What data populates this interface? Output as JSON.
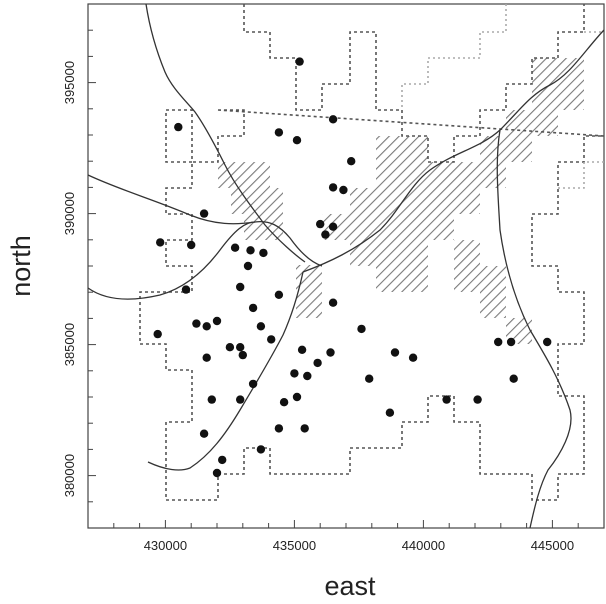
{
  "chart_data": {
    "type": "scatter",
    "title": "",
    "xlabel": "east",
    "ylabel": "north",
    "xlim": [
      427000,
      447000
    ],
    "ylim": [
      378000,
      398000
    ],
    "grid": false,
    "x_ticks": [
      430000,
      435000,
      440000,
      445000
    ],
    "y_ticks": [
      380000,
      385000,
      390000,
      395000
    ],
    "colors": {
      "points": "#111111",
      "roads": "#333333",
      "region_outline": "#555555",
      "region_outline_light": "#aaaaaa",
      "hatch": "#777777"
    },
    "points": [
      [
        435200,
        395800
      ],
      [
        430500,
        393300
      ],
      [
        434400,
        393100
      ],
      [
        435100,
        392800
      ],
      [
        436500,
        393600
      ],
      [
        437200,
        392000
      ],
      [
        436500,
        391000
      ],
      [
        436900,
        390900
      ],
      [
        431500,
        390000
      ],
      [
        429800,
        388900
      ],
      [
        431000,
        388800
      ],
      [
        432700,
        388700
      ],
      [
        433300,
        388600
      ],
      [
        433800,
        388500
      ],
      [
        436000,
        389600
      ],
      [
        436200,
        389200
      ],
      [
        436500,
        389500
      ],
      [
        433200,
        388000
      ],
      [
        430800,
        387100
      ],
      [
        432900,
        387200
      ],
      [
        434400,
        386900
      ],
      [
        433400,
        386400
      ],
      [
        436500,
        386600
      ],
      [
        431200,
        385800
      ],
      [
        431600,
        385700
      ],
      [
        432000,
        385900
      ],
      [
        429700,
        385400
      ],
      [
        433700,
        385700
      ],
      [
        434100,
        385200
      ],
      [
        437600,
        385600
      ],
      [
        431600,
        384500
      ],
      [
        432500,
        384900
      ],
      [
        432900,
        384900
      ],
      [
        433000,
        384600
      ],
      [
        435300,
        384800
      ],
      [
        435900,
        384300
      ],
      [
        436400,
        384700
      ],
      [
        438900,
        384700
      ],
      [
        439600,
        384500
      ],
      [
        435000,
        383900
      ],
      [
        435500,
        383800
      ],
      [
        433400,
        383500
      ],
      [
        437900,
        383700
      ],
      [
        431800,
        382900
      ],
      [
        432900,
        382900
      ],
      [
        434600,
        382800
      ],
      [
        435100,
        383000
      ],
      [
        438700,
        382400
      ],
      [
        440900,
        382900
      ],
      [
        442100,
        382900
      ],
      [
        431500,
        381600
      ],
      [
        434400,
        381800
      ],
      [
        435400,
        381800
      ],
      [
        433700,
        381000
      ],
      [
        432200,
        380600
      ],
      [
        432000,
        380100
      ],
      [
        442900,
        385100
      ],
      [
        443400,
        385100
      ],
      [
        444800,
        385100
      ],
      [
        443500,
        383700
      ]
    ]
  }
}
